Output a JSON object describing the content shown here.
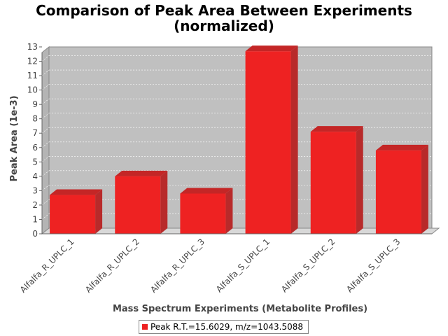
{
  "chart_data": {
    "type": "bar",
    "title_lines": [
      "Comparison of Peak Area Between Experiments",
      "(normalized)"
    ],
    "xlabel": "Mass Spectrum Experiments (Metabolite Profiles)",
    "ylabel": "Peak Area (1e-3)",
    "categories": [
      "Alfalfa_R_UPLC_1",
      "Alfalfa_R_UPLC_2",
      "Alfalfa_R_UPLC_3",
      "Alfalfa_S_UPLC_1",
      "Alfalfa_S_UPLC_2",
      "Alfalfa_S_UPLC_3"
    ],
    "series": [
      {
        "name": "Peak R.T.=15.6029, m/z=1043.5088",
        "values": [
          2.7,
          4.0,
          2.8,
          12.7,
          7.1,
          5.8
        ],
        "color": "#ee2222"
      }
    ],
    "ylim": [
      0,
      13
    ],
    "yticks": [
      0,
      1,
      2,
      3,
      4,
      5,
      6,
      7,
      8,
      9,
      10,
      11,
      12,
      13
    ],
    "grid": true,
    "legend_position": "bottom",
    "plot_background": "#c0c0c0"
  }
}
